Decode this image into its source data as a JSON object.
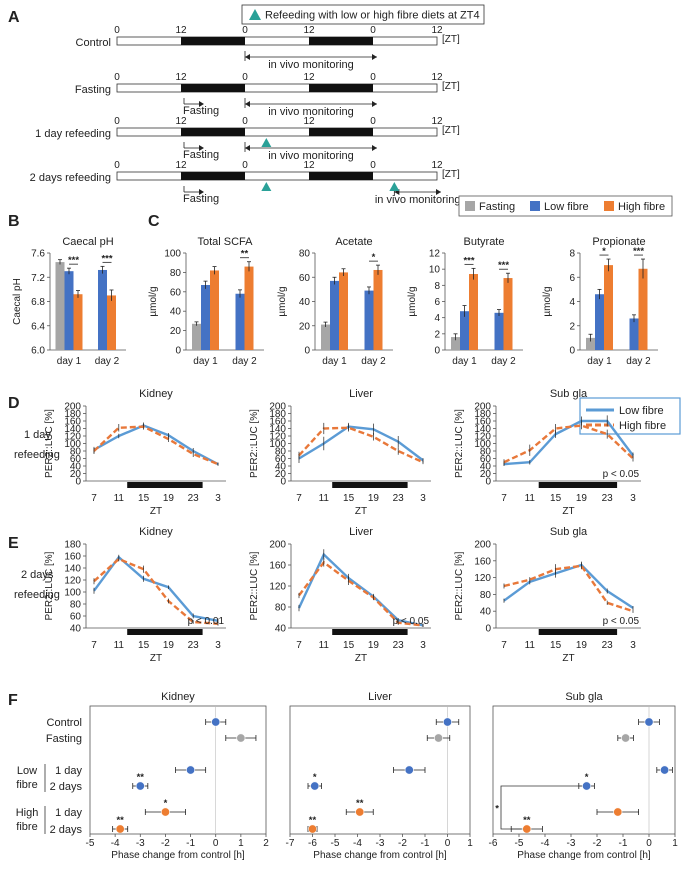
{
  "colors": {
    "fasting": "#a6a6a6",
    "low": "#4472c4",
    "high": "#ed7d31",
    "line_low": "#5b9bd5",
    "line_high": "#e8783a",
    "marker": "#2aa198"
  },
  "panels": {
    "A": "A",
    "B": "B",
    "C": "C",
    "D": "D",
    "E": "E",
    "F": "F"
  },
  "schedule": {
    "legend": "Refeeding with low or high fibre diets at ZT4",
    "zt_unit": "[ZT]",
    "ticks": [
      "0",
      "12",
      "0",
      "12",
      "0",
      "12"
    ],
    "monitor_label": "in vivo monitoring",
    "fasting_label": "Fasting",
    "rows": [
      {
        "label": "Control",
        "fasting": false,
        "markers": []
      },
      {
        "label": "Fasting",
        "fasting": true,
        "markers": []
      },
      {
        "label": "1 day refeeding",
        "fasting": true,
        "markers": [
          28
        ]
      },
      {
        "label": "2 days refeeding",
        "fasting": true,
        "markers": [
          28,
          52
        ]
      }
    ]
  },
  "legend_bar": {
    "fasting": "Fasting",
    "low": "Low fibre",
    "high": "High fibre"
  },
  "legend_line": {
    "low": "Low fibre",
    "high": "High fibre"
  },
  "chart_data": [
    {
      "id": "caecal-ph",
      "type": "bar",
      "title": "Caecal pH",
      "ylabel": "Caecal pH",
      "ylim": [
        6.0,
        7.6
      ],
      "yticks": [
        "6.0",
        "6.4",
        "6.8",
        "7.2",
        "7.6"
      ],
      "categories": [
        "day 1",
        "day 2"
      ],
      "fasting": 7.45,
      "fasting_err": 0.04,
      "series": [
        {
          "name": "Low fibre",
          "values": [
            7.3,
            7.32
          ],
          "err": [
            0.05,
            0.06
          ]
        },
        {
          "name": "High fibre",
          "values": [
            6.92,
            6.9
          ],
          "err": [
            0.06,
            0.09
          ]
        }
      ],
      "sig": [
        "***",
        "***"
      ]
    },
    {
      "id": "total-scfa",
      "type": "bar",
      "title": "Total SCFA",
      "ylabel": "µmol/g",
      "ylim": [
        0,
        100
      ],
      "yticks": [
        "0",
        "20",
        "40",
        "60",
        "80",
        "100"
      ],
      "categories": [
        "day 1",
        "day 2"
      ],
      "fasting": 27,
      "fasting_err": 2,
      "series": [
        {
          "name": "Low fibre",
          "values": [
            67,
            58
          ],
          "err": [
            4,
            4
          ]
        },
        {
          "name": "High fibre",
          "values": [
            82,
            86
          ],
          "err": [
            4,
            5
          ]
        }
      ],
      "sig": [
        "",
        "**"
      ]
    },
    {
      "id": "acetate",
      "type": "bar",
      "title": "Acetate",
      "ylabel": "µmol/g",
      "ylim": [
        0,
        80
      ],
      "yticks": [
        "0",
        "20",
        "40",
        "60",
        "80"
      ],
      "categories": [
        "day 1",
        "day 2"
      ],
      "fasting": 21,
      "fasting_err": 2,
      "series": [
        {
          "name": "Low fibre",
          "values": [
            57,
            49
          ],
          "err": [
            3,
            3
          ]
        },
        {
          "name": "High fibre",
          "values": [
            64,
            66
          ],
          "err": [
            3,
            4
          ]
        }
      ],
      "sig": [
        "",
        "*"
      ]
    },
    {
      "id": "butyrate",
      "type": "bar",
      "title": "Butyrate",
      "ylabel": "µmol/g",
      "ylim": [
        0,
        12
      ],
      "yticks": [
        "0",
        "2",
        "4",
        "6",
        "8",
        "10",
        "12"
      ],
      "categories": [
        "day 1",
        "day 2"
      ],
      "fasting": 1.6,
      "fasting_err": 0.4,
      "series": [
        {
          "name": "Low fibre",
          "values": [
            4.8,
            4.6
          ],
          "err": [
            0.7,
            0.4
          ]
        },
        {
          "name": "High fibre",
          "values": [
            9.4,
            8.9
          ],
          "err": [
            0.7,
            0.6
          ]
        }
      ],
      "sig": [
        "***",
        "***"
      ]
    },
    {
      "id": "propionate",
      "type": "bar",
      "title": "Propionate",
      "ylabel": "µmol/g",
      "ylim": [
        0,
        8
      ],
      "yticks": [
        "0",
        "2",
        "4",
        "6",
        "8"
      ],
      "categories": [
        "day 1",
        "day 2"
      ],
      "fasting": 1.0,
      "fasting_err": 0.3,
      "series": [
        {
          "name": "Low fibre",
          "values": [
            4.6,
            2.6
          ],
          "err": [
            0.4,
            0.3
          ]
        },
        {
          "name": "High fibre",
          "values": [
            7.0,
            6.7
          ],
          "err": [
            0.5,
            0.8
          ]
        }
      ],
      "sig": [
        "*",
        "***"
      ]
    },
    {
      "id": "d-kidney",
      "type": "line",
      "title": "Kidney",
      "ylabel": "PER2::LUC [%]",
      "xlabel": "ZT",
      "x": [
        "7",
        "11",
        "15",
        "19",
        "23",
        "3"
      ],
      "ylim": [
        0,
        200
      ],
      "yticks": [
        "0",
        "20",
        "40",
        "60",
        "80",
        "100",
        "120",
        "140",
        "160",
        "180",
        "200"
      ],
      "series": [
        {
          "name": "Low fibre",
          "values": [
            83,
            120,
            148,
            122,
            80,
            45
          ],
          "err": [
            8,
            6,
            8,
            6,
            8,
            4
          ]
        },
        {
          "name": "High fibre",
          "values": [
            80,
            142,
            145,
            112,
            72,
            45
          ],
          "err": [
            8,
            10,
            8,
            8,
            8,
            4
          ]
        }
      ],
      "pvalue": ""
    },
    {
      "id": "d-liver",
      "type": "line",
      "title": "Liver",
      "ylabel": "PER2::LUC [%]",
      "xlabel": "ZT",
      "x": [
        "7",
        "11",
        "15",
        "19",
        "23",
        "3"
      ],
      "ylim": [
        0,
        200
      ],
      "yticks": [
        "0",
        "20",
        "40",
        "60",
        "80",
        "100",
        "120",
        "140",
        "160",
        "180",
        "200"
      ],
      "series": [
        {
          "name": "Low fibre",
          "values": [
            60,
            100,
            145,
            138,
            105,
            55
          ],
          "err": [
            12,
            18,
            10,
            15,
            15,
            6
          ]
        },
        {
          "name": "High fibre",
          "values": [
            68,
            140,
            142,
            118,
            80,
            50
          ],
          "err": [
            10,
            15,
            10,
            10,
            10,
            5
          ]
        }
      ],
      "pvalue": ""
    },
    {
      "id": "d-subgla",
      "type": "line",
      "title": "Sub gla",
      "ylabel": "PER2::LUC [%]",
      "xlabel": "ZT",
      "x": [
        "7",
        "11",
        "15",
        "19",
        "23",
        "3"
      ],
      "ylim": [
        0,
        200
      ],
      "yticks": [
        "0",
        "20",
        "40",
        "60",
        "80",
        "100",
        "120",
        "140",
        "160",
        "180",
        "200"
      ],
      "series": [
        {
          "name": "Low fibre",
          "values": [
            45,
            50,
            125,
            160,
            160,
            68
          ],
          "err": [
            5,
            6,
            10,
            12,
            15,
            8
          ]
        },
        {
          "name": "High fibre",
          "values": [
            50,
            82,
            140,
            148,
            125,
            60
          ],
          "err": [
            8,
            15,
            12,
            10,
            12,
            8
          ]
        }
      ],
      "pvalue": "p < 0.05"
    },
    {
      "id": "e-kidney",
      "type": "line",
      "title": "Kidney",
      "ylabel": "PER2::LUC [%]",
      "xlabel": "ZT",
      "x": [
        "7",
        "11",
        "15",
        "19",
        "23",
        "3"
      ],
      "ylim": [
        40,
        180
      ],
      "yticks": [
        "40",
        "60",
        "80",
        "100",
        "120",
        "140",
        "160",
        "180"
      ],
      "series": [
        {
          "name": "Low fibre",
          "values": [
            102,
            158,
            122,
            108,
            60,
            52
          ],
          "err": [
            5,
            4,
            5,
            3,
            4,
            4
          ]
        },
        {
          "name": "High fibre",
          "values": [
            118,
            155,
            138,
            85,
            50,
            47
          ],
          "err": [
            5,
            4,
            6,
            4,
            3,
            3
          ]
        }
      ],
      "pvalue": "p < 0.01"
    },
    {
      "id": "e-liver",
      "type": "line",
      "title": "Liver",
      "ylabel": "PER2::LUC [%]",
      "xlabel": "ZT",
      "x": [
        "7",
        "11",
        "15",
        "19",
        "23",
        "3"
      ],
      "ylim": [
        40,
        200
      ],
      "yticks": [
        "40",
        "80",
        "120",
        "160",
        "200"
      ],
      "series": [
        {
          "name": "Low fibre",
          "values": [
            78,
            180,
            135,
            100,
            55,
            45
          ],
          "err": [
            6,
            10,
            8,
            5,
            4,
            3
          ]
        },
        {
          "name": "High fibre",
          "values": [
            102,
            165,
            130,
            98,
            50,
            45
          ],
          "err": [
            5,
            8,
            8,
            5,
            4,
            3
          ]
        }
      ],
      "pvalue": "p < 0.05"
    },
    {
      "id": "e-subgla",
      "type": "line",
      "title": "Sub gla",
      "ylabel": "PER2::LUC [%]",
      "xlabel": "ZT",
      "x": [
        "7",
        "11",
        "15",
        "19",
        "23",
        "3"
      ],
      "ylim": [
        0,
        200
      ],
      "yticks": [
        "0",
        "40",
        "80",
        "120",
        "160",
        "200"
      ],
      "series": [
        {
          "name": "Low fibre",
          "values": [
            65,
            110,
            130,
            150,
            88,
            48
          ],
          "err": [
            5,
            6,
            10,
            8,
            6,
            4
          ]
        },
        {
          "name": "High fibre",
          "values": [
            100,
            115,
            140,
            148,
            60,
            40
          ],
          "err": [
            6,
            6,
            12,
            8,
            5,
            4
          ]
        }
      ],
      "pvalue": "p < 0.05"
    },
    {
      "id": "f-kidney",
      "type": "scatter",
      "title": "Kidney",
      "xlabel": "Phase change from control [h]",
      "xlim": [
        -5,
        2
      ],
      "xticks": [
        "-5",
        "-4",
        "-3",
        "-2",
        "-1",
        "0",
        "1",
        "2"
      ],
      "points": [
        {
          "group": "Control",
          "value": 0,
          "err": 0.4,
          "sig": ""
        },
        {
          "group": "Fasting",
          "value": 1,
          "err": 0.6,
          "sig": ""
        },
        {
          "group": "Low fibre 1 day",
          "value": -1,
          "err": 0.6,
          "sig": ""
        },
        {
          "group": "Low fibre 2 days",
          "value": -3,
          "err": 0.3,
          "sig": "**"
        },
        {
          "group": "High fibre 1 day",
          "value": -2,
          "err": 0.8,
          "sig": "*"
        },
        {
          "group": "High fibre 2 days",
          "value": -3.8,
          "err": 0.3,
          "sig": "**"
        }
      ]
    },
    {
      "id": "f-liver",
      "type": "scatter",
      "title": "Liver",
      "xlabel": "Phase change from control [h]",
      "xlim": [
        -7,
        1
      ],
      "xticks": [
        "-7",
        "-6",
        "-5",
        "-4",
        "-3",
        "-2",
        "-1",
        "0",
        "1"
      ],
      "points": [
        {
          "group": "Control",
          "value": 0,
          "err": 0.5,
          "sig": ""
        },
        {
          "group": "Fasting",
          "value": -0.4,
          "err": 0.5,
          "sig": ""
        },
        {
          "group": "Low fibre 1 day",
          "value": -1.7,
          "err": 0.7,
          "sig": ""
        },
        {
          "group": "Low fibre 2 days",
          "value": -5.9,
          "err": 0.3,
          "sig": "*"
        },
        {
          "group": "High fibre 1 day",
          "value": -3.9,
          "err": 0.6,
          "sig": "**"
        },
        {
          "group": "High fibre 2 days",
          "value": -6,
          "err": 0.2,
          "sig": "**"
        }
      ]
    },
    {
      "id": "f-subgla",
      "type": "scatter",
      "title": "Sub gla",
      "xlabel": "Phase change from control [h]",
      "xlim": [
        -6,
        1
      ],
      "xticks": [
        "-6",
        "-5",
        "-4",
        "-3",
        "-2",
        "-1",
        "0",
        "1"
      ],
      "points": [
        {
          "group": "Control",
          "value": 0,
          "err": 0.4,
          "sig": ""
        },
        {
          "group": "Fasting",
          "value": -0.9,
          "err": 0.3,
          "sig": ""
        },
        {
          "group": "Low fibre 1 day",
          "value": 0.6,
          "err": 0.3,
          "sig": ""
        },
        {
          "group": "Low fibre 2 days",
          "value": -2.4,
          "err": 0.3,
          "sig": "*"
        },
        {
          "group": "High fibre 1 day",
          "value": -1.2,
          "err": 0.8,
          "sig": ""
        },
        {
          "group": "High fibre 2 days",
          "value": -4.7,
          "err": 0.6,
          "sig": "**"
        }
      ],
      "bracket_sig": "*"
    }
  ],
  "forest": {
    "rows": [
      "Control",
      "Fasting",
      "1 day",
      "2 days",
      "1 day",
      "2 days"
    ],
    "groups": [
      {
        "label": "Low",
        "label2": "fibre"
      },
      {
        "label": "High",
        "label2": "fibre"
      }
    ]
  },
  "row_labels": {
    "d": "1 day",
    "d2": "refeeding",
    "e": "2 days",
    "e2": "refeeding"
  }
}
